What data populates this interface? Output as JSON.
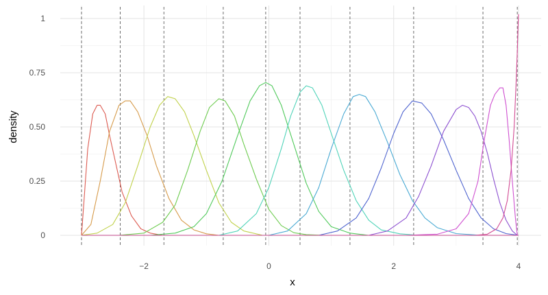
{
  "chart_data": {
    "type": "line",
    "title": "",
    "xlabel": "x",
    "ylabel": "density",
    "xlim": [
      -3.0,
      4.0
    ],
    "ylim": [
      0,
      1.0
    ],
    "x_ticks": [
      -2,
      0,
      2,
      4
    ],
    "x_tick_labels": [
      "−2",
      "0",
      "2",
      "4"
    ],
    "y_ticks": [
      0,
      0.25,
      0.5,
      0.75,
      1.0
    ],
    "y_tick_labels": [
      "0",
      "0.25",
      "0.50",
      "0.75",
      "1"
    ],
    "grid": true,
    "legend": "none",
    "cut_points": [
      -3.0,
      -2.38,
      -1.68,
      -0.73,
      -0.05,
      0.5,
      1.3,
      2.32,
      3.43,
      3.98
    ],
    "series": [
      {
        "color": "#dc5a50",
        "x": [
          -3.0,
          -2.9,
          -2.82,
          -2.75,
          -2.7,
          -2.62,
          -2.55,
          -2.45,
          -2.35,
          -2.2,
          -2.05,
          -1.9,
          -1.7
        ],
        "y": [
          0.0,
          0.4,
          0.56,
          0.6,
          0.6,
          0.56,
          0.46,
          0.33,
          0.2,
          0.09,
          0.03,
          0.01,
          0.0
        ]
      },
      {
        "color": "#d69a49",
        "x": [
          -3.0,
          -2.85,
          -2.7,
          -2.55,
          -2.4,
          -2.3,
          -2.22,
          -2.1,
          -1.95,
          -1.8,
          -1.6,
          -1.4,
          -1.2,
          -1.0,
          -0.8
        ],
        "y": [
          0.0,
          0.05,
          0.25,
          0.48,
          0.6,
          0.62,
          0.62,
          0.57,
          0.46,
          0.32,
          0.17,
          0.07,
          0.025,
          0.007,
          0.0
        ]
      },
      {
        "color": "#c0d14a",
        "x": [
          -3.0,
          -2.75,
          -2.5,
          -2.3,
          -2.1,
          -1.9,
          -1.75,
          -1.62,
          -1.5,
          -1.35,
          -1.2,
          -1.0,
          -0.8,
          -0.6,
          -0.4,
          -0.1
        ],
        "y": [
          0.0,
          0.01,
          0.05,
          0.15,
          0.32,
          0.5,
          0.6,
          0.64,
          0.63,
          0.57,
          0.46,
          0.3,
          0.15,
          0.06,
          0.02,
          0.0
        ]
      },
      {
        "color": "#6ccb4e",
        "x": [
          -2.4,
          -2.0,
          -1.7,
          -1.5,
          -1.3,
          -1.1,
          -0.95,
          -0.8,
          -0.7,
          -0.55,
          -0.4,
          -0.2,
          0.0,
          0.2,
          0.4,
          0.6,
          0.9
        ],
        "y": [
          0.0,
          0.01,
          0.06,
          0.14,
          0.3,
          0.48,
          0.59,
          0.63,
          0.62,
          0.55,
          0.42,
          0.26,
          0.12,
          0.045,
          0.012,
          0.003,
          0.0
        ]
      },
      {
        "color": "#4fc95a",
        "x": [
          -1.9,
          -1.5,
          -1.2,
          -1.0,
          -0.75,
          -0.5,
          -0.3,
          -0.15,
          -0.05,
          0.05,
          0.2,
          0.4,
          0.6,
          0.8,
          1.0,
          1.3,
          1.6
        ],
        "y": [
          0.0,
          0.01,
          0.04,
          0.1,
          0.25,
          0.46,
          0.62,
          0.69,
          0.705,
          0.69,
          0.6,
          0.42,
          0.24,
          0.11,
          0.04,
          0.01,
          0.0
        ]
      },
      {
        "color": "#4ed3b8",
        "x": [
          -0.8,
          -0.5,
          -0.2,
          0.0,
          0.2,
          0.35,
          0.5,
          0.6,
          0.7,
          0.85,
          1.0,
          1.2,
          1.4,
          1.6,
          1.8,
          2.1,
          2.4
        ],
        "y": [
          0.0,
          0.02,
          0.1,
          0.22,
          0.4,
          0.55,
          0.66,
          0.69,
          0.68,
          0.6,
          0.47,
          0.3,
          0.16,
          0.07,
          0.025,
          0.007,
          0.0
        ]
      },
      {
        "color": "#48a9d3",
        "x": [
          0.0,
          0.3,
          0.6,
          0.8,
          1.0,
          1.2,
          1.35,
          1.45,
          1.55,
          1.7,
          1.9,
          2.1,
          2.3,
          2.5,
          2.7,
          3.0,
          3.4
        ],
        "y": [
          0.0,
          0.02,
          0.1,
          0.22,
          0.4,
          0.56,
          0.64,
          0.65,
          0.64,
          0.57,
          0.43,
          0.28,
          0.16,
          0.08,
          0.035,
          0.008,
          0.0
        ]
      },
      {
        "color": "#4e63cf",
        "x": [
          0.8,
          1.1,
          1.4,
          1.6,
          1.8,
          2.0,
          2.15,
          2.3,
          2.45,
          2.6,
          2.8,
          3.0,
          3.2,
          3.4,
          3.6,
          3.8,
          4.0
        ],
        "y": [
          0.0,
          0.02,
          0.08,
          0.17,
          0.31,
          0.47,
          0.57,
          0.62,
          0.61,
          0.56,
          0.44,
          0.3,
          0.17,
          0.08,
          0.03,
          0.008,
          0.0
        ]
      },
      {
        "color": "#8c4fd0",
        "x": [
          1.6,
          1.9,
          2.2,
          2.4,
          2.6,
          2.8,
          3.0,
          3.1,
          3.2,
          3.3,
          3.4,
          3.5,
          3.6,
          3.7,
          3.8,
          3.9,
          3.98
        ],
        "y": [
          0.0,
          0.02,
          0.08,
          0.18,
          0.32,
          0.48,
          0.58,
          0.6,
          0.59,
          0.55,
          0.48,
          0.38,
          0.26,
          0.15,
          0.07,
          0.02,
          0.0
        ]
      },
      {
        "color": "#cf4fd0",
        "x": [
          2.2,
          2.7,
          3.0,
          3.2,
          3.35,
          3.45,
          3.55,
          3.62,
          3.7,
          3.75,
          3.8,
          3.85,
          3.9,
          3.95,
          3.98
        ],
        "y": [
          0.0,
          0.005,
          0.03,
          0.1,
          0.25,
          0.44,
          0.6,
          0.65,
          0.68,
          0.68,
          0.6,
          0.44,
          0.25,
          0.08,
          0.0
        ]
      },
      {
        "color": "#d24a93",
        "x": [
          3.3,
          3.5,
          3.65,
          3.75,
          3.82,
          3.88,
          3.93,
          3.96,
          3.98,
          3.99,
          4.0
        ],
        "y": [
          0.0,
          0.005,
          0.03,
          0.08,
          0.16,
          0.3,
          0.5,
          0.7,
          0.85,
          0.95,
          1.02
        ]
      }
    ]
  }
}
